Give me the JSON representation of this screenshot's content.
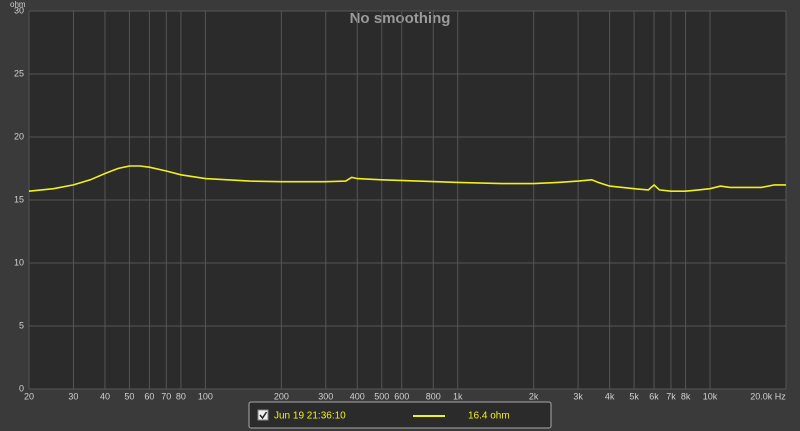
{
  "chart_data": {
    "type": "line",
    "title": "No smoothing",
    "y_label": "ohm",
    "x_log": true,
    "grid": true,
    "xlim": [
      20,
      20000
    ],
    "xticks": [
      20,
      30,
      40,
      50,
      60,
      70,
      80,
      100,
      200,
      300,
      400,
      500,
      600,
      800,
      {
        "value": 1000,
        "label": "1k"
      },
      {
        "value": 2000,
        "label": "2k"
      },
      {
        "value": 3000,
        "label": "3k"
      },
      {
        "value": 4000,
        "label": "4k"
      },
      {
        "value": 5000,
        "label": "5k"
      },
      {
        "value": 6000,
        "label": "6k"
      },
      {
        "value": 7000,
        "label": "7k"
      },
      {
        "value": 8000,
        "label": "8k"
      },
      {
        "value": 10000,
        "label": "10k"
      },
      {
        "value": 20000,
        "label": "20.0k Hz"
      }
    ],
    "ylim": [
      0,
      30
    ],
    "yticks": [
      0,
      5,
      10,
      15,
      20,
      25,
      30
    ],
    "x": [
      20,
      25,
      30,
      35,
      40,
      45,
      50,
      55,
      60,
      70,
      80,
      100,
      150,
      200,
      300,
      360,
      380,
      400,
      500,
      700,
      1000,
      1500,
      2000,
      2500,
      3000,
      3400,
      3600,
      4000,
      5000,
      5700,
      6000,
      6300,
      7000,
      8000,
      9000,
      10000,
      11000,
      12000,
      14000,
      16000,
      18000,
      20000
    ],
    "series": [
      {
        "name": "Jun 19 21:36:10",
        "color": "#f0f020",
        "values": [
          15.7,
          15.9,
          16.2,
          16.6,
          17.1,
          17.5,
          17.7,
          17.7,
          17.6,
          17.3,
          17.0,
          16.7,
          16.5,
          16.45,
          16.45,
          16.5,
          16.8,
          16.7,
          16.6,
          16.5,
          16.4,
          16.3,
          16.3,
          16.4,
          16.5,
          16.6,
          16.4,
          16.1,
          15.9,
          15.8,
          16.2,
          15.8,
          15.7,
          15.7,
          15.8,
          15.9,
          16.1,
          16.0,
          16.0,
          16.0,
          16.2,
          16.2
        ],
        "legend_value": "16.4 ohm"
      }
    ]
  }
}
